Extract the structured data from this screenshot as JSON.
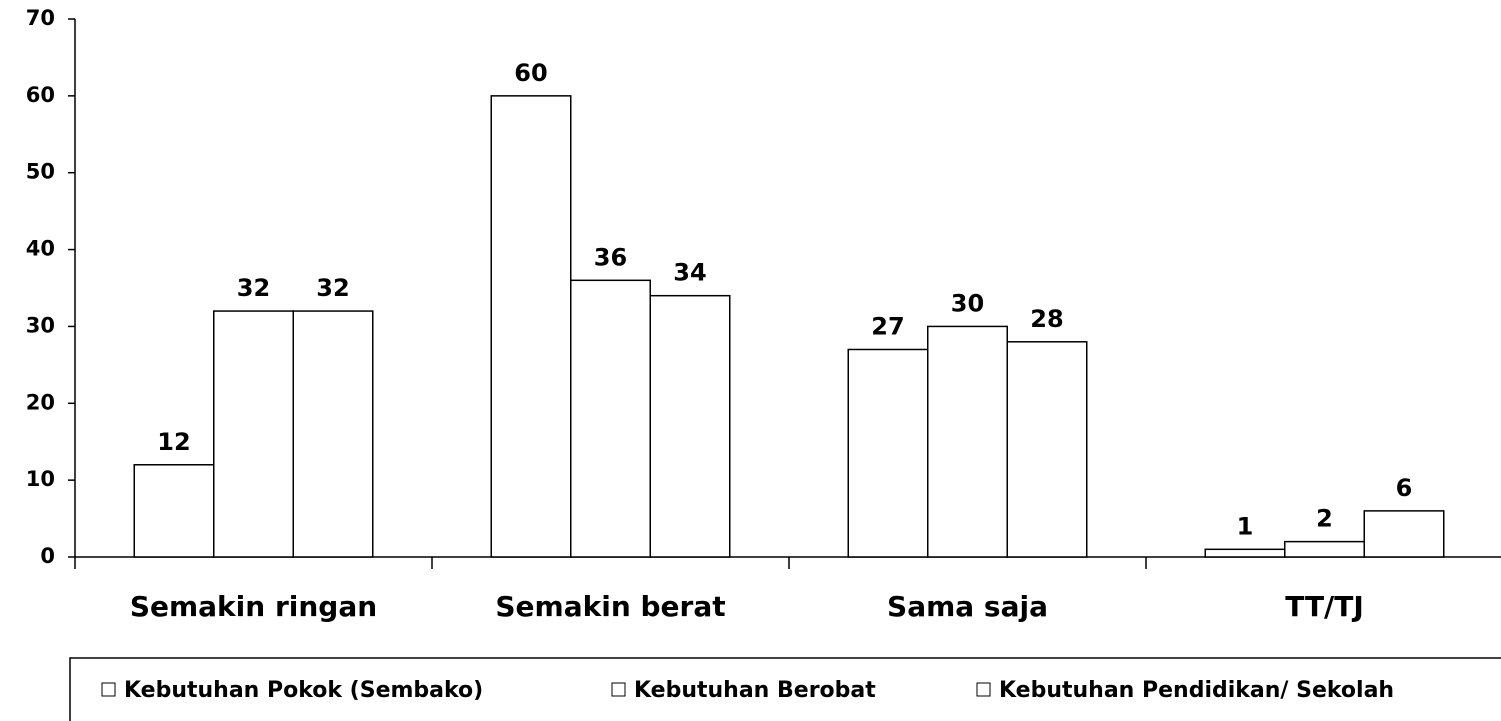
{
  "chart_data": {
    "type": "bar",
    "categories": [
      "Semakin ringan",
      "Semakin berat",
      "Sama saja",
      "TT/TJ"
    ],
    "series": [
      {
        "name": "Kebutuhan Pokok (Sembako)",
        "color": "#ffffff",
        "values": [
          12,
          60,
          27,
          1
        ]
      },
      {
        "name": "Kebutuhan Berobat",
        "color": "#ffffff",
        "values": [
          32,
          36,
          30,
          2
        ]
      },
      {
        "name": "Kebutuhan Pendidikan/ Sekolah",
        "color": "#ffffff",
        "values": [
          32,
          34,
          28,
          6
        ]
      }
    ],
    "ylim": [
      0,
      70
    ],
    "yticks": [
      0,
      10,
      20,
      30,
      40,
      50,
      60,
      70
    ],
    "grid": false,
    "legend": "bottom"
  }
}
